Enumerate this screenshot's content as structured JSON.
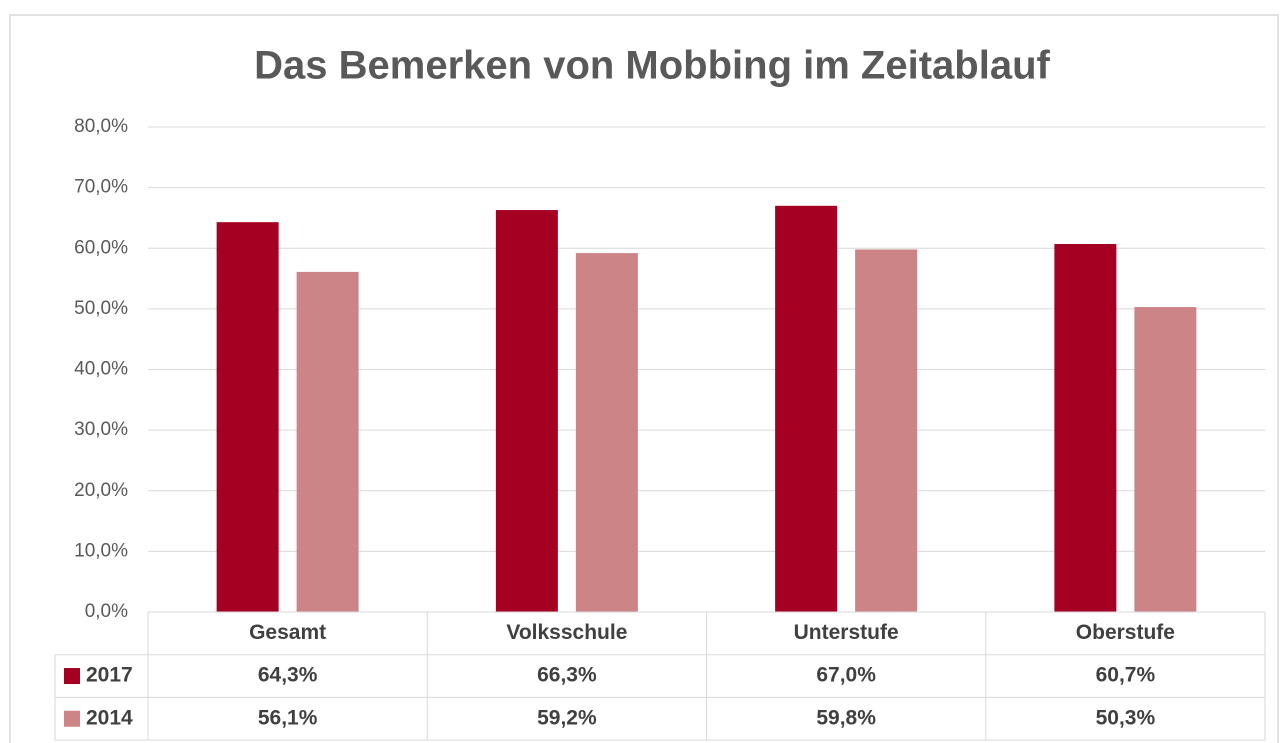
{
  "chart_data": {
    "type": "bar",
    "title": "Das Bemerken von Mobbing im Zeitablauf",
    "categories": [
      "Gesamt",
      "Volksschule",
      "Unterstufe",
      "Oberstufe"
    ],
    "series": [
      {
        "name": "2017",
        "color": "#a50021",
        "values": [
          64.3,
          66.3,
          67.0,
          60.7
        ],
        "value_labels": [
          "64,3%",
          "66,3%",
          "67,0%",
          "60,7%"
        ]
      },
      {
        "name": "2014",
        "color": "#cc8487",
        "values": [
          56.1,
          59.2,
          59.8,
          50.3
        ],
        "value_labels": [
          "56,1%",
          "59,2%",
          "59,8%",
          "50,3%"
        ]
      }
    ],
    "ylim": [
      0,
      80
    ],
    "yticks": [
      {
        "value": 0,
        "label": "0,0%"
      },
      {
        "value": 10,
        "label": "10,0%"
      },
      {
        "value": 20,
        "label": "20,0%"
      },
      {
        "value": 30,
        "label": "30,0%"
      },
      {
        "value": 40,
        "label": "40,0%"
      },
      {
        "value": 50,
        "label": "50,0%"
      },
      {
        "value": 60,
        "label": "60,0%"
      },
      {
        "value": 70,
        "label": "70,0%"
      },
      {
        "value": 80,
        "label": "80,0%"
      }
    ],
    "grid": true
  }
}
